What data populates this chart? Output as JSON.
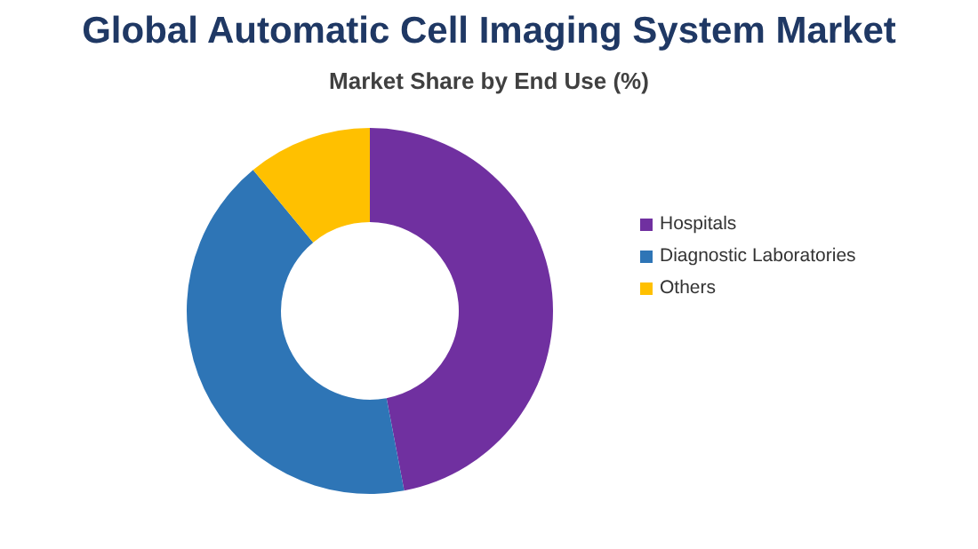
{
  "chart_data": {
    "type": "donut",
    "title": "Global Automatic Cell Imaging System Market",
    "subtitle": "Market Share by End Use (%)",
    "categories": [
      "Hospitals",
      "Diagnostic Laboratories",
      "Others"
    ],
    "values": [
      47,
      42,
      11
    ],
    "colors": [
      "#7030a0",
      "#2e75b6",
      "#ffc000"
    ],
    "legend": "right"
  }
}
